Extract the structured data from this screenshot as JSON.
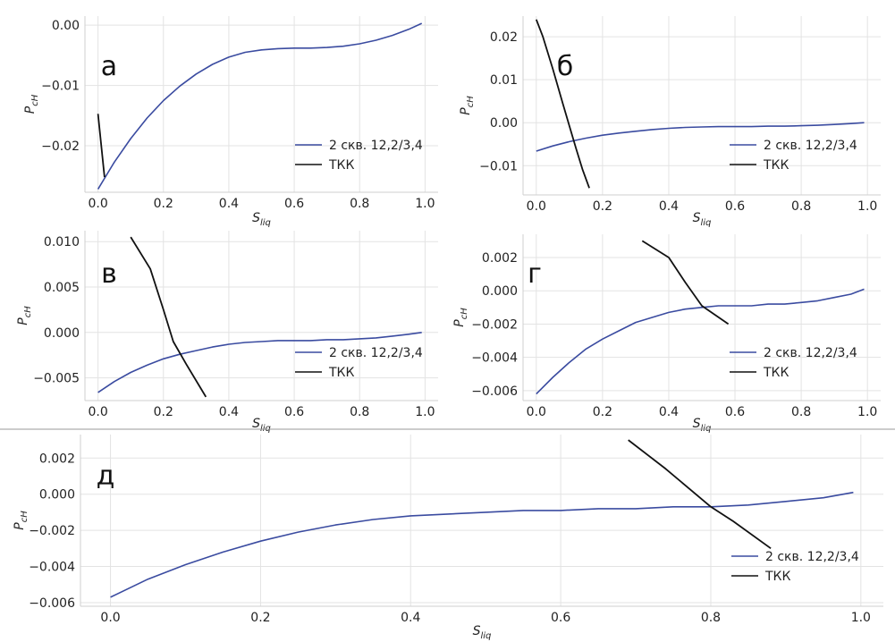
{
  "chart_data": [
    {
      "type": "line",
      "panel_label": "а",
      "xlabel": "S",
      "xlabel_sub": "liq",
      "ylabel": "P",
      "ylabel_sub": "cH",
      "xlim": [
        -0.04,
        1.04
      ],
      "ylim": [
        -0.0277,
        0.0015
      ],
      "xticks": [
        0.0,
        0.2,
        0.4,
        0.6,
        0.8,
        1.0
      ],
      "xtick_labels": [
        "0.0",
        "0.2",
        "0.4",
        "0.6",
        "0.8",
        "1.0"
      ],
      "yticks": [
        0.0,
        -0.01,
        -0.02
      ],
      "ytick_labels": [
        "0.00",
        "−0.01",
        "−0.02"
      ],
      "grid": true,
      "legend_position": "lower-right",
      "series": [
        {
          "name": "2 скв. 12,2/3,4",
          "color": "#3a4ba0",
          "x": [
            0.0,
            0.05,
            0.1,
            0.15,
            0.2,
            0.25,
            0.3,
            0.35,
            0.4,
            0.45,
            0.5,
            0.55,
            0.6,
            0.65,
            0.7,
            0.75,
            0.8,
            0.85,
            0.9,
            0.95,
            0.99
          ],
          "y": [
            -0.0272,
            -0.0227,
            -0.0188,
            -0.0154,
            -0.0125,
            -0.0101,
            -0.0081,
            -0.0065,
            -0.0053,
            -0.0045,
            -0.0041,
            -0.0039,
            -0.0038,
            -0.0038,
            -0.0037,
            -0.0035,
            -0.0031,
            -0.0025,
            -0.0017,
            -0.0007,
            0.0003
          ]
        },
        {
          "name": "ТКК",
          "color": "#111111",
          "x": [
            0.0,
            0.02
          ],
          "y": [
            -0.0147,
            -0.0252
          ]
        }
      ]
    },
    {
      "type": "line",
      "panel_label": "б",
      "xlabel": "S",
      "xlabel_sub": "liq",
      "ylabel": "P",
      "ylabel_sub": "cH",
      "xlim": [
        -0.04,
        1.04
      ],
      "ylim": [
        -0.0168,
        0.0248
      ],
      "xticks": [
        0.0,
        0.2,
        0.4,
        0.6,
        0.8,
        1.0
      ],
      "xtick_labels": [
        "0.0",
        "0.2",
        "0.4",
        "0.6",
        "0.8",
        "1.0"
      ],
      "yticks": [
        0.02,
        0.01,
        0.0,
        -0.01
      ],
      "ytick_labels": [
        "0.02",
        "0.01",
        "0.00",
        "−0.01"
      ],
      "grid": true,
      "legend_position": "lower-right",
      "series": [
        {
          "name": "2 скв. 12,2/3,4",
          "color": "#3a4ba0",
          "x": [
            0.0,
            0.05,
            0.1,
            0.15,
            0.2,
            0.25,
            0.3,
            0.35,
            0.4,
            0.45,
            0.5,
            0.55,
            0.6,
            0.65,
            0.7,
            0.75,
            0.8,
            0.85,
            0.9,
            0.95,
            0.99
          ],
          "y": [
            -0.0066,
            -0.0054,
            -0.0044,
            -0.0036,
            -0.0029,
            -0.0024,
            -0.002,
            -0.0016,
            -0.0013,
            -0.0011,
            -0.001,
            -0.0009,
            -0.0009,
            -0.0009,
            -0.0008,
            -0.0008,
            -0.0007,
            -0.0006,
            -0.0004,
            -0.0002,
            0.0
          ]
        },
        {
          "name": "ТКК",
          "color": "#111111",
          "x": [
            0.0,
            0.02,
            0.05,
            0.08,
            0.1,
            0.12,
            0.14,
            0.16
          ],
          "y": [
            0.024,
            0.02,
            0.0125,
            0.0045,
            -0.0008,
            -0.006,
            -0.011,
            -0.0152
          ]
        }
      ]
    },
    {
      "type": "line",
      "panel_label": "в",
      "xlabel": "S",
      "xlabel_sub": "liq",
      "ylabel": "P",
      "ylabel_sub": "cH",
      "xlim": [
        -0.04,
        1.04
      ],
      "ylim": [
        -0.0075,
        0.0112
      ],
      "xticks": [
        0.0,
        0.2,
        0.4,
        0.6,
        0.8,
        1.0
      ],
      "xtick_labels": [
        "0.0",
        "0.2",
        "0.4",
        "0.6",
        "0.8",
        "1.0"
      ],
      "yticks": [
        0.01,
        0.005,
        0.0,
        -0.005
      ],
      "ytick_labels": [
        "0.010",
        "0.005",
        "0.000",
        "−0.005"
      ],
      "grid": true,
      "legend_position": "lower-right",
      "series": [
        {
          "name": "2 скв. 12,2/3,4",
          "color": "#3a4ba0",
          "x": [
            0.0,
            0.05,
            0.1,
            0.15,
            0.2,
            0.25,
            0.3,
            0.35,
            0.4,
            0.45,
            0.5,
            0.55,
            0.6,
            0.65,
            0.7,
            0.75,
            0.8,
            0.85,
            0.9,
            0.95,
            0.99
          ],
          "y": [
            -0.0066,
            -0.0054,
            -0.0044,
            -0.0036,
            -0.0029,
            -0.0024,
            -0.002,
            -0.0016,
            -0.0013,
            -0.0011,
            -0.001,
            -0.0009,
            -0.0009,
            -0.0009,
            -0.0008,
            -0.0008,
            -0.0007,
            -0.0006,
            -0.0004,
            -0.0002,
            0.0
          ]
        },
        {
          "name": "ТКК",
          "color": "#111111",
          "x": [
            0.1,
            0.16,
            0.2,
            0.23,
            0.27,
            0.33
          ],
          "y": [
            0.0105,
            0.007,
            0.0025,
            -0.001,
            -0.0035,
            -0.0071
          ]
        }
      ]
    },
    {
      "type": "line",
      "panel_label": "г",
      "xlabel": "S",
      "xlabel_sub": "liq",
      "ylabel": "P",
      "ylabel_sub": "cH",
      "xlim": [
        -0.04,
        1.04
      ],
      "ylim": [
        -0.0066,
        0.0034
      ],
      "xticks": [
        0.0,
        0.2,
        0.4,
        0.6,
        0.8,
        1.0
      ],
      "xtick_labels": [
        "0.0",
        "0.2",
        "0.4",
        "0.6",
        "0.8",
        "1.0"
      ],
      "yticks": [
        0.002,
        0.0,
        -0.002,
        -0.004,
        -0.006
      ],
      "ytick_labels": [
        "0.002",
        "0.000",
        "−0.002",
        "−0.004",
        "−0.006"
      ],
      "grid": true,
      "legend_position": "lower-right",
      "series": [
        {
          "name": "2 скв. 12,2/3,4",
          "color": "#3a4ba0",
          "x": [
            0.0,
            0.05,
            0.1,
            0.15,
            0.2,
            0.25,
            0.3,
            0.35,
            0.4,
            0.45,
            0.5,
            0.55,
            0.6,
            0.65,
            0.7,
            0.75,
            0.8,
            0.85,
            0.9,
            0.95,
            0.99
          ],
          "y": [
            -0.0062,
            -0.0052,
            -0.0043,
            -0.0035,
            -0.0029,
            -0.0024,
            -0.0019,
            -0.0016,
            -0.0013,
            -0.0011,
            -0.001,
            -0.0009,
            -0.0009,
            -0.0009,
            -0.0008,
            -0.0008,
            -0.0007,
            -0.0006,
            -0.0004,
            -0.0002,
            0.0001
          ]
        },
        {
          "name": "ТКК",
          "color": "#111111",
          "x": [
            0.32,
            0.4,
            0.45,
            0.5,
            0.58
          ],
          "y": [
            0.003,
            0.002,
            0.0005,
            -0.0009,
            -0.002
          ]
        }
      ]
    },
    {
      "type": "line",
      "panel_label": "д",
      "xlabel": "S",
      "xlabel_sub": "liq",
      "ylabel": "P",
      "ylabel_sub": "cH",
      "xlim": [
        -0.04,
        1.03
      ],
      "ylim": [
        -0.0062,
        0.0033
      ],
      "xticks": [
        0.0,
        0.2,
        0.4,
        0.6,
        0.8,
        1.0
      ],
      "xtick_labels": [
        "0.0",
        "0.2",
        "0.4",
        "0.6",
        "0.8",
        "1.0"
      ],
      "yticks": [
        0.002,
        0.0,
        -0.002,
        -0.004,
        -0.006
      ],
      "ytick_labels": [
        "0.002",
        "0.000",
        "−0.002",
        "−0.004",
        "−0.006"
      ],
      "grid": true,
      "legend_position": "lower-right",
      "series": [
        {
          "name": "2 скв. 12,2/3,4",
          "color": "#3a4ba0",
          "x": [
            0.0,
            0.05,
            0.1,
            0.15,
            0.2,
            0.25,
            0.3,
            0.35,
            0.4,
            0.45,
            0.5,
            0.55,
            0.6,
            0.65,
            0.7,
            0.75,
            0.8,
            0.85,
            0.9,
            0.95,
            0.99
          ],
          "y": [
            -0.0057,
            -0.0047,
            -0.0039,
            -0.0032,
            -0.0026,
            -0.0021,
            -0.0017,
            -0.0014,
            -0.0012,
            -0.0011,
            -0.001,
            -0.0009,
            -0.0009,
            -0.0008,
            -0.0008,
            -0.0007,
            -0.0007,
            -0.0006,
            -0.0004,
            -0.0002,
            0.0001
          ]
        },
        {
          "name": "ТКК",
          "color": "#111111",
          "x": [
            0.69,
            0.74,
            0.8,
            0.83,
            0.88
          ],
          "y": [
            0.003,
            0.0014,
            -0.0007,
            -0.0015,
            -0.003
          ]
        }
      ]
    }
  ]
}
